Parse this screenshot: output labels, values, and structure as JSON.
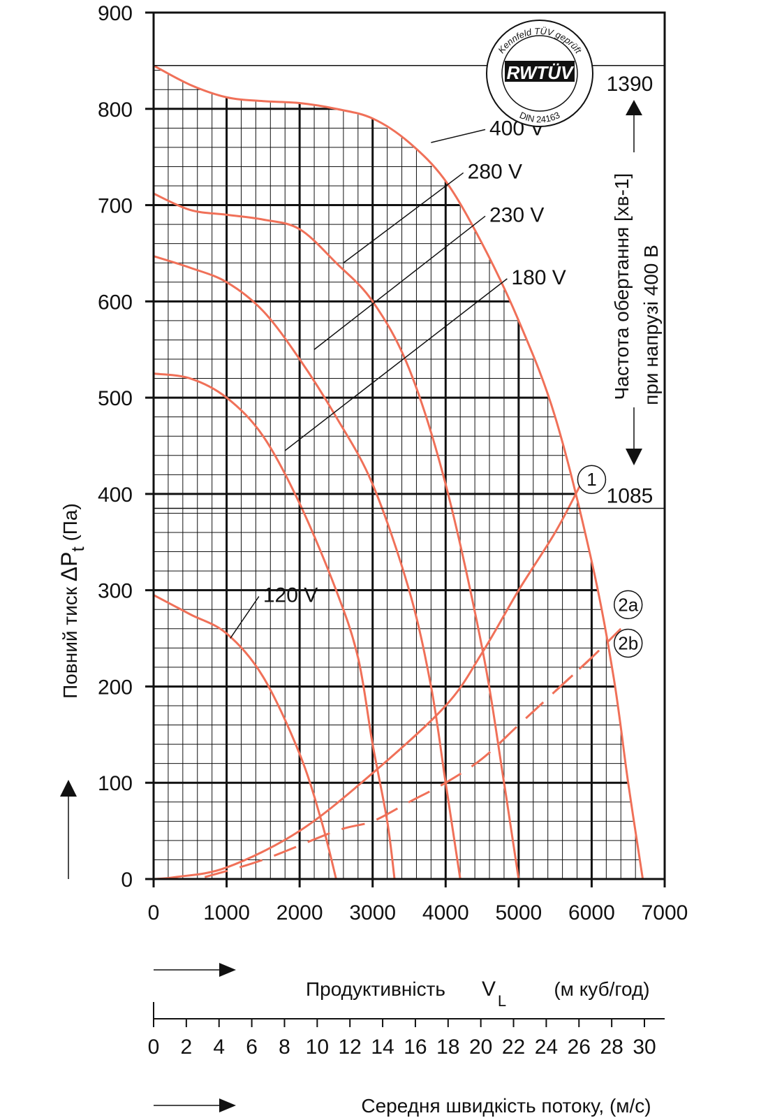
{
  "chart_data": {
    "type": "line",
    "ylabel_prefix": "Повний тиск ",
    "ylabel_symbol": "ΔP",
    "ylabel_sub": "t",
    "ylabel_unit": " (Па)",
    "xlabel_main": "Продуктивність",
    "xlabel_symbol": "V",
    "xlabel_sub": "L",
    "xlabel_unit": "(м куб/год)",
    "x2label": "Середня швидкість потоку, (м/с)",
    "right_label_line1": "Частота  обертання [хв-1]",
    "right_label_line2": "при напрузі 400 В",
    "xlim": [
      0,
      7000
    ],
    "ylim": [
      0,
      900
    ],
    "x_ticks": [
      "0",
      "1000",
      "2000",
      "3000",
      "4000",
      "5000",
      "6000",
      "7000"
    ],
    "y_ticks": [
      "0",
      "100",
      "200",
      "300",
      "400",
      "500",
      "600",
      "700",
      "800",
      "900"
    ],
    "x_tick_values": [
      0,
      1000,
      2000,
      3000,
      4000,
      5000,
      6000,
      7000
    ],
    "y_tick_values": [
      0,
      100,
      200,
      300,
      400,
      500,
      600,
      700,
      800,
      900
    ],
    "x2_ticks": [
      "0",
      "2",
      "4",
      "6",
      "8",
      "10",
      "12",
      "14",
      "16",
      "18",
      "20",
      "22",
      "24",
      "26",
      "28",
      "30"
    ],
    "x2_tick_values": [
      0,
      2,
      4,
      6,
      8,
      10,
      12,
      14,
      16,
      18,
      20,
      22,
      24,
      26,
      28,
      30
    ],
    "x2lim": [
      0,
      30
    ],
    "rpm_marks": [
      {
        "label": "1390",
        "y": 845
      },
      {
        "label": "1085",
        "y": 385
      }
    ],
    "series": [
      {
        "name": "400 V",
        "color": "#f07058",
        "points": [
          [
            0,
            845
          ],
          [
            500,
            825
          ],
          [
            1000,
            812
          ],
          [
            1500,
            808
          ],
          [
            2000,
            806
          ],
          [
            2500,
            800
          ],
          [
            3000,
            790
          ],
          [
            3500,
            765
          ],
          [
            4000,
            725
          ],
          [
            4500,
            660
          ],
          [
            5000,
            580
          ],
          [
            5500,
            480
          ],
          [
            6000,
            330
          ],
          [
            6300,
            210
          ],
          [
            6500,
            100
          ],
          [
            6700,
            0
          ]
        ]
      },
      {
        "name": "280 V",
        "color": "#f07058",
        "points": [
          [
            0,
            712
          ],
          [
            500,
            695
          ],
          [
            1000,
            690
          ],
          [
            1500,
            685
          ],
          [
            2000,
            675
          ],
          [
            2500,
            640
          ],
          [
            3000,
            600
          ],
          [
            3500,
            530
          ],
          [
            4000,
            410
          ],
          [
            4500,
            240
          ],
          [
            4800,
            100
          ],
          [
            5000,
            0
          ]
        ]
      },
      {
        "name": "230 V",
        "color": "#f07058",
        "points": [
          [
            0,
            647
          ],
          [
            500,
            635
          ],
          [
            1000,
            620
          ],
          [
            1500,
            590
          ],
          [
            2000,
            540
          ],
          [
            2500,
            480
          ],
          [
            3000,
            410
          ],
          [
            3500,
            300
          ],
          [
            3800,
            200
          ],
          [
            4000,
            100
          ],
          [
            4200,
            0
          ]
        ]
      },
      {
        "name": "180 V",
        "color": "#f07058",
        "points": [
          [
            0,
            525
          ],
          [
            500,
            520
          ],
          [
            1000,
            500
          ],
          [
            1500,
            460
          ],
          [
            2000,
            390
          ],
          [
            2500,
            300
          ],
          [
            2800,
            230
          ],
          [
            3000,
            140
          ],
          [
            3200,
            60
          ],
          [
            3300,
            0
          ]
        ]
      },
      {
        "name": "120 V",
        "color": "#f07058",
        "points": [
          [
            0,
            295
          ],
          [
            500,
            275
          ],
          [
            1000,
            255
          ],
          [
            1500,
            210
          ],
          [
            2000,
            130
          ],
          [
            2300,
            60
          ],
          [
            2500,
            0
          ]
        ]
      }
    ],
    "system_curves": [
      {
        "name": "1",
        "dashed": false,
        "color": "#f07058",
        "points": [
          [
            0,
            0
          ],
          [
            300,
            2
          ],
          [
            1000,
            12
          ],
          [
            2000,
            50
          ],
          [
            3000,
            110
          ],
          [
            4000,
            180
          ],
          [
            4500,
            235
          ],
          [
            5000,
            300
          ],
          [
            5500,
            360
          ],
          [
            5850,
            410
          ]
        ]
      },
      {
        "name": "2a",
        "dashed": true,
        "color": "#f07058",
        "points": [
          [
            700,
            2
          ],
          [
            1500,
            20
          ],
          [
            2500,
            50
          ],
          [
            3000,
            60
          ],
          [
            3500,
            80
          ],
          [
            4000,
            100
          ],
          [
            4500,
            125
          ],
          [
            5000,
            160
          ],
          [
            5500,
            195
          ],
          [
            6000,
            230
          ]
        ]
      },
      {
        "name": "2b",
        "dashed": true,
        "color": "#f07058",
        "points": [
          [
            5500,
            195
          ],
          [
            6000,
            230
          ],
          [
            6400,
            260
          ]
        ]
      }
    ],
    "curve_labels": [
      {
        "text": "400 V",
        "x": 3800,
        "y": 765,
        "lx": 4600,
        "ly": 780
      },
      {
        "text": "280 V",
        "x": 2600,
        "y": 640,
        "lx": 4300,
        "ly": 735
      },
      {
        "text": "230 V",
        "x": 2200,
        "y": 550,
        "lx": 4600,
        "ly": 690
      },
      {
        "text": "180 V",
        "x": 1800,
        "y": 445,
        "lx": 4900,
        "ly": 625
      },
      {
        "text": "120 V",
        "x": 1050,
        "y": 250,
        "lx": 1500,
        "ly": 295
      }
    ],
    "system_labels": [
      {
        "text": "1",
        "x": 6000,
        "y": 415
      },
      {
        "text": "2a",
        "x": 6500,
        "y": 285
      },
      {
        "text": "2b",
        "x": 6500,
        "y": 245
      }
    ],
    "seal": {
      "top_text": "Kennfeld TÜV geprüft",
      "center_text": "RWTÜV",
      "bottom_text": "DIN 24163"
    }
  }
}
